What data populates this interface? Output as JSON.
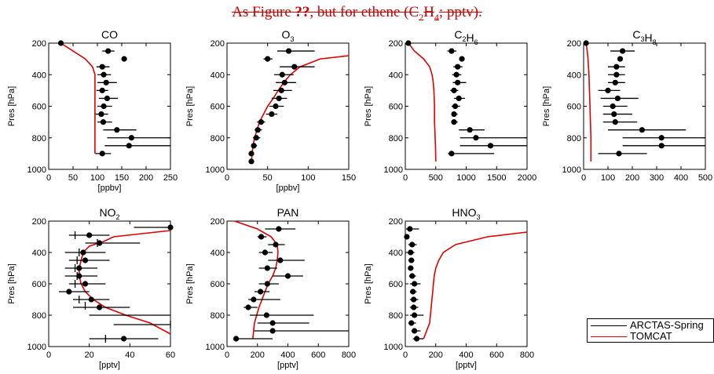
{
  "figure": {
    "title_pre": "As Figure ",
    "title_ref": "??",
    "title_mid": ", but for ethene (C",
    "title_sub1": "2",
    "title_mid2": "H",
    "title_sub2": "4",
    "title_post": "; pptv)."
  },
  "legend": {
    "items": [
      {
        "label": "ARCTAS-Spring",
        "color": "#000000"
      },
      {
        "label": "TOMCAT",
        "color": "#e00000"
      }
    ]
  },
  "colors": {
    "observations": "#000000",
    "model": "#e00000",
    "title": "#d00000"
  },
  "chart_data": [
    {
      "type": "scatter",
      "title": "CO",
      "title_sub": "",
      "xlabel": "[ppbv]",
      "ylabel": "Pres [hPa]",
      "xlim": [
        0,
        250
      ],
      "ylim": [
        1000,
        200
      ],
      "xticks": [
        "0",
        "50",
        "100",
        "150",
        "200",
        "250"
      ],
      "xtick_values": [
        0,
        50,
        100,
        150,
        200,
        250
      ],
      "yticks": [
        "200",
        "400",
        "600",
        "800",
        "1000"
      ],
      "ytick_values": [
        200,
        400,
        600,
        800,
        1000
      ],
      "obs": [
        {
          "p": 200,
          "x": 25,
          "lo": 25,
          "hi": 25
        },
        {
          "p": 250,
          "x": 122,
          "lo": 110,
          "hi": 135
        },
        {
          "p": 300,
          "x": 155,
          "lo": 155,
          "hi": 155
        },
        {
          "p": 350,
          "x": 110,
          "lo": 98,
          "hi": 125
        },
        {
          "p": 400,
          "x": 113,
          "lo": 100,
          "hi": 128
        },
        {
          "p": 450,
          "x": 118,
          "lo": 100,
          "hi": 140
        },
        {
          "p": 500,
          "x": 110,
          "lo": 98,
          "hi": 122
        },
        {
          "p": 550,
          "x": 120,
          "lo": 103,
          "hi": 142
        },
        {
          "p": 600,
          "x": 113,
          "lo": 100,
          "hi": 130
        },
        {
          "p": 650,
          "x": 108,
          "lo": 96,
          "hi": 122
        },
        {
          "p": 700,
          "x": 112,
          "lo": 100,
          "hi": 130
        },
        {
          "p": 750,
          "x": 140,
          "lo": 112,
          "hi": 180
        },
        {
          "p": 800,
          "x": 170,
          "lo": 120,
          "hi": 250
        },
        {
          "p": 850,
          "x": 165,
          "lo": 115,
          "hi": 250
        },
        {
          "p": 900,
          "x": 110,
          "lo": 96,
          "hi": 128
        }
      ],
      "model": {
        "x": [
          25,
          50,
          75,
          90,
          95,
          95,
          95,
          95,
          95,
          95,
          95,
          95,
          95,
          95,
          95
        ],
        "p": [
          200,
          250,
          300,
          350,
          400,
          450,
          500,
          550,
          600,
          650,
          700,
          750,
          800,
          850,
          900
        ]
      }
    },
    {
      "type": "scatter",
      "title": "O",
      "title_sub": "3",
      "xlabel": "[ppbv]",
      "ylabel": "Pres [hPa]",
      "xlim": [
        0,
        150
      ],
      "ylim": [
        1000,
        200
      ],
      "xticks": [
        "0",
        "50",
        "100",
        "150"
      ],
      "xtick_values": [
        0,
        50,
        100,
        150
      ],
      "yticks": [
        "200",
        "400",
        "600",
        "800",
        "1000"
      ],
      "ytick_values": [
        200,
        400,
        600,
        800,
        1000
      ],
      "obs": [
        {
          "p": 250,
          "x": 76,
          "lo": 62,
          "hi": 108
        },
        {
          "p": 300,
          "x": 50,
          "lo": 45,
          "hi": 56
        },
        {
          "p": 350,
          "x": 83,
          "lo": 65,
          "hi": 108
        },
        {
          "p": 400,
          "x": 68,
          "lo": 58,
          "hi": 82
        },
        {
          "p": 450,
          "x": 71,
          "lo": 60,
          "hi": 85
        },
        {
          "p": 500,
          "x": 67,
          "lo": 57,
          "hi": 80
        },
        {
          "p": 550,
          "x": 64,
          "lo": 55,
          "hi": 74
        },
        {
          "p": 600,
          "x": 60,
          "lo": 52,
          "hi": 70
        },
        {
          "p": 650,
          "x": 55,
          "lo": 48,
          "hi": 62
        },
        {
          "p": 700,
          "x": 42,
          "lo": 37,
          "hi": 47
        },
        {
          "p": 750,
          "x": 38,
          "lo": 34,
          "hi": 43
        },
        {
          "p": 800,
          "x": 36,
          "lo": 32,
          "hi": 41
        },
        {
          "p": 850,
          "x": 33,
          "lo": 30,
          "hi": 37
        },
        {
          "p": 900,
          "x": 30,
          "lo": 27,
          "hi": 33
        },
        {
          "p": 950,
          "x": 30,
          "lo": 27,
          "hi": 33
        }
      ],
      "model": {
        "x": [
          150,
          115,
          90,
          78,
          70,
          63,
          57,
          50,
          45,
          40,
          37,
          34,
          32,
          31,
          30
        ],
        "p": [
          280,
          300,
          350,
          400,
          450,
          500,
          550,
          600,
          650,
          700,
          750,
          800,
          850,
          900,
          950
        ]
      }
    },
    {
      "type": "scatter",
      "title": "C",
      "title_sub": "2",
      "title_post": "H",
      "title_sub2": "6",
      "xlabel": "",
      "ylabel": "Pres [hPa]",
      "xlim": [
        0,
        2000
      ],
      "ylim": [
        1000,
        200
      ],
      "xticks": [
        "0",
        "500",
        "1000",
        "1500",
        "2000"
      ],
      "xtick_values": [
        0,
        500,
        1000,
        1500,
        2000
      ],
      "yticks": [
        "200",
        "400",
        "600",
        "800",
        "1000"
      ],
      "ytick_values": [
        200,
        400,
        600,
        800,
        1000
      ],
      "obs": [
        {
          "p": 200,
          "x": 50,
          "lo": 50,
          "hi": 50
        },
        {
          "p": 250,
          "x": 760,
          "lo": 690,
          "hi": 840
        },
        {
          "p": 300,
          "x": 930,
          "lo": 930,
          "hi": 930
        },
        {
          "p": 350,
          "x": 860,
          "lo": 790,
          "hi": 940
        },
        {
          "p": 400,
          "x": 840,
          "lo": 770,
          "hi": 920
        },
        {
          "p": 450,
          "x": 860,
          "lo": 780,
          "hi": 1000
        },
        {
          "p": 500,
          "x": 800,
          "lo": 740,
          "hi": 870
        },
        {
          "p": 550,
          "x": 880,
          "lo": 800,
          "hi": 980
        },
        {
          "p": 600,
          "x": 820,
          "lo": 760,
          "hi": 900
        },
        {
          "p": 650,
          "x": 800,
          "lo": 760,
          "hi": 860
        },
        {
          "p": 700,
          "x": 800,
          "lo": 760,
          "hi": 860
        },
        {
          "p": 750,
          "x": 1060,
          "lo": 880,
          "hi": 1300
        },
        {
          "p": 800,
          "x": 1160,
          "lo": 900,
          "hi": 2000
        },
        {
          "p": 850,
          "x": 1400,
          "lo": 900,
          "hi": 2000
        },
        {
          "p": 900,
          "x": 760,
          "lo": 700,
          "hi": 1460
        }
      ],
      "model": {
        "x": [
          50,
          150,
          300,
          400,
          440,
          460,
          470,
          475,
          480,
          480,
          480,
          485,
          490,
          495,
          500
        ],
        "p": [
          200,
          250,
          300,
          350,
          400,
          450,
          500,
          550,
          600,
          650,
          700,
          750,
          800,
          850,
          950
        ]
      }
    },
    {
      "type": "scatter",
      "title": "C",
      "title_sub": "3",
      "title_post": "H",
      "title_sub2": "8",
      "xlabel": "",
      "ylabel": "Pres [hPa]",
      "xlim": [
        0,
        500
      ],
      "ylim": [
        1000,
        200
      ],
      "xticks": [
        "0",
        "100",
        "200",
        "300",
        "400",
        "500"
      ],
      "xtick_values": [
        0,
        100,
        200,
        300,
        400,
        500
      ],
      "yticks": [
        "200",
        "400",
        "600",
        "800",
        "1000"
      ],
      "ytick_values": [
        200,
        400,
        600,
        800,
        1000
      ],
      "obs": [
        {
          "p": 200,
          "x": 10,
          "lo": 10,
          "hi": 10
        },
        {
          "p": 250,
          "x": 160,
          "lo": 110,
          "hi": 210
        },
        {
          "p": 300,
          "x": 150,
          "lo": 150,
          "hi": 150
        },
        {
          "p": 350,
          "x": 135,
          "lo": 100,
          "hi": 170
        },
        {
          "p": 400,
          "x": 135,
          "lo": 100,
          "hi": 170
        },
        {
          "p": 450,
          "x": 130,
          "lo": 100,
          "hi": 170
        },
        {
          "p": 500,
          "x": 100,
          "lo": 60,
          "hi": 150
        },
        {
          "p": 550,
          "x": 140,
          "lo": 70,
          "hi": 225
        },
        {
          "p": 600,
          "x": 120,
          "lo": 80,
          "hi": 180
        },
        {
          "p": 650,
          "x": 125,
          "lo": 80,
          "hi": 200
        },
        {
          "p": 700,
          "x": 130,
          "lo": 80,
          "hi": 220
        },
        {
          "p": 750,
          "x": 240,
          "lo": 100,
          "hi": 420
        },
        {
          "p": 800,
          "x": 320,
          "lo": 160,
          "hi": 500
        },
        {
          "p": 850,
          "x": 320,
          "lo": 160,
          "hi": 500
        },
        {
          "p": 900,
          "x": 145,
          "lo": 60,
          "hi": 260
        }
      ],
      "model": {
        "x": [
          10,
          15,
          18,
          20,
          22,
          23,
          24,
          25,
          26,
          27,
          28,
          29,
          30,
          30,
          30
        ],
        "p": [
          200,
          250,
          300,
          350,
          400,
          450,
          500,
          550,
          600,
          650,
          700,
          750,
          800,
          850,
          950
        ]
      }
    },
    {
      "type": "scatter",
      "title": "NO",
      "title_sub": "2",
      "xlabel": "[pptv]",
      "ylabel": "Pres [hPa]",
      "xlim": [
        0,
        60
      ],
      "ylim": [
        1000,
        200
      ],
      "xticks": [
        "0",
        "20",
        "40",
        "60"
      ],
      "xtick_values": [
        0,
        20,
        40,
        60
      ],
      "yticks": [
        "200",
        "400",
        "600",
        "800",
        "1000"
      ],
      "ytick_values": [
        200,
        400,
        600,
        800,
        1000
      ],
      "obs": [
        {
          "p": 240,
          "x": 60,
          "lo": 42,
          "hi": 60
        },
        {
          "p": 290,
          "x": 20,
          "lo": 10,
          "hi": 30
        },
        {
          "p": 340,
          "x": 25,
          "lo": 18,
          "hi": 45
        },
        {
          "p": 400,
          "x": 17,
          "lo": 8,
          "hi": 28
        },
        {
          "p": 450,
          "x": 18,
          "lo": 10,
          "hi": 30
        },
        {
          "p": 500,
          "x": 15,
          "lo": 8,
          "hi": 24
        },
        {
          "p": 550,
          "x": 15,
          "lo": 8,
          "hi": 24
        },
        {
          "p": 600,
          "x": 18,
          "lo": 10,
          "hi": 28
        },
        {
          "p": 650,
          "x": 10,
          "lo": 5,
          "hi": 20
        },
        {
          "p": 700,
          "x": 21,
          "lo": 12,
          "hi": 30
        },
        {
          "p": 750,
          "x": 25,
          "lo": 12,
          "hi": 40
        },
        {
          "p": 950,
          "x": 37,
          "lo": 20,
          "hi": 54
        }
      ],
      "obs_alt": [
        {
          "p": 290,
          "x": 13
        },
        {
          "p": 340,
          "x": 24
        },
        {
          "p": 400,
          "x": 15
        },
        {
          "p": 450,
          "x": 14
        },
        {
          "p": 500,
          "x": 13
        },
        {
          "p": 550,
          "x": 14
        },
        {
          "p": 600,
          "x": 13
        },
        {
          "p": 700,
          "x": 15
        },
        {
          "p": 740,
          "x": 18
        },
        {
          "p": 860,
          "x": 60
        },
        {
          "p": 950,
          "x": 28
        }
      ],
      "alt_bars": [
        {
          "p": 800,
          "lo": 20,
          "hi": 60
        },
        {
          "p": 860,
          "lo": 32,
          "hi": 60
        }
      ],
      "model": {
        "x": [
          60,
          32,
          27,
          20,
          17,
          16,
          15,
          15,
          16,
          18,
          22,
          28,
          38,
          50,
          60
        ],
        "p": [
          260,
          300,
          330,
          360,
          400,
          450,
          500,
          550,
          600,
          650,
          700,
          750,
          800,
          850,
          920
        ]
      }
    },
    {
      "type": "scatter",
      "title": "PAN",
      "title_sub": "",
      "xlabel": "[pptv]",
      "ylabel": "Pres [hPa]",
      "xlim": [
        0,
        800
      ],
      "ylim": [
        1000,
        200
      ],
      "xticks": [
        "0",
        "200",
        "400",
        "600",
        "800"
      ],
      "xtick_values": [
        0,
        200,
        400,
        600,
        800
      ],
      "yticks": [
        "200",
        "400",
        "600",
        "800",
        "1000"
      ],
      "ytick_values": [
        200,
        400,
        600,
        800,
        1000
      ],
      "obs": [
        {
          "p": 250,
          "x": 340,
          "lo": 250,
          "hi": 450
        },
        {
          "p": 300,
          "x": 225,
          "lo": 200,
          "hi": 260
        },
        {
          "p": 350,
          "x": 320,
          "lo": 270,
          "hi": 380
        },
        {
          "p": 400,
          "x": 250,
          "lo": 210,
          "hi": 300
        },
        {
          "p": 450,
          "x": 350,
          "lo": 270,
          "hi": 510
        },
        {
          "p": 500,
          "x": 265,
          "lo": 210,
          "hi": 330
        },
        {
          "p": 550,
          "x": 400,
          "lo": 300,
          "hi": 500
        },
        {
          "p": 600,
          "x": 265,
          "lo": 210,
          "hi": 340
        },
        {
          "p": 650,
          "x": 220,
          "lo": 180,
          "hi": 280
        },
        {
          "p": 700,
          "x": 175,
          "lo": 140,
          "hi": 350
        },
        {
          "p": 750,
          "x": 140,
          "lo": 110,
          "hi": 200
        },
        {
          "p": 800,
          "x": 260,
          "lo": 150,
          "hi": 570
        },
        {
          "p": 850,
          "x": 300,
          "lo": 200,
          "hi": 540
        },
        {
          "p": 900,
          "x": 300,
          "lo": 180,
          "hi": 800
        },
        {
          "p": 950,
          "x": 60,
          "lo": 60,
          "hi": 300
        }
      ],
      "model": {
        "x": [
          50,
          200,
          290,
          330,
          335,
          330,
          320,
          300,
          270,
          250,
          230,
          210,
          195,
          180,
          170
        ],
        "p": [
          200,
          250,
          300,
          350,
          400,
          450,
          500,
          550,
          600,
          650,
          700,
          750,
          800,
          850,
          950
        ]
      }
    },
    {
      "type": "scatter",
      "title": "HNO",
      "title_sub": "3",
      "xlabel": "[pptv]",
      "ylabel": "Pres [hPa]",
      "xlim": [
        0,
        800
      ],
      "ylim": [
        1000,
        200
      ],
      "xticks": [
        "0",
        "200",
        "400",
        "600",
        "800"
      ],
      "xtick_values": [
        0,
        200,
        400,
        600,
        800
      ],
      "yticks": [
        "200",
        "400",
        "600",
        "800",
        "1000"
      ],
      "ytick_values": [
        200,
        400,
        600,
        800,
        1000
      ],
      "obs": [
        {
          "p": 250,
          "x": 30,
          "lo": 5,
          "hi": 90
        },
        {
          "p": 300,
          "x": 10,
          "lo": 10,
          "hi": 10
        },
        {
          "p": 350,
          "x": 45,
          "lo": 20,
          "hi": 75
        },
        {
          "p": 400,
          "x": 35,
          "lo": 15,
          "hi": 60
        },
        {
          "p": 450,
          "x": 40,
          "lo": 20,
          "hi": 60
        },
        {
          "p": 500,
          "x": 35,
          "lo": 20,
          "hi": 55
        },
        {
          "p": 550,
          "x": 45,
          "lo": 25,
          "hi": 70
        },
        {
          "p": 600,
          "x": 60,
          "lo": 30,
          "hi": 100
        },
        {
          "p": 650,
          "x": 50,
          "lo": 30,
          "hi": 75
        },
        {
          "p": 700,
          "x": 55,
          "lo": 30,
          "hi": 85
        },
        {
          "p": 750,
          "x": 55,
          "lo": 30,
          "hi": 85
        },
        {
          "p": 800,
          "x": 60,
          "lo": 30,
          "hi": 120
        },
        {
          "p": 850,
          "x": 40,
          "lo": 20,
          "hi": 70
        },
        {
          "p": 900,
          "x": 60,
          "lo": 40,
          "hi": 100
        },
        {
          "p": 950,
          "x": 75,
          "lo": 50,
          "hi": 120
        }
      ],
      "model": {
        "x": [
          800,
          540,
          330,
          250,
          220,
          200,
          190,
          185,
          180,
          175,
          170,
          165,
          160,
          140,
          120
        ],
        "p": [
          270,
          300,
          350,
          400,
          450,
          500,
          550,
          600,
          650,
          700,
          750,
          800,
          850,
          900,
          950
        ]
      }
    }
  ]
}
